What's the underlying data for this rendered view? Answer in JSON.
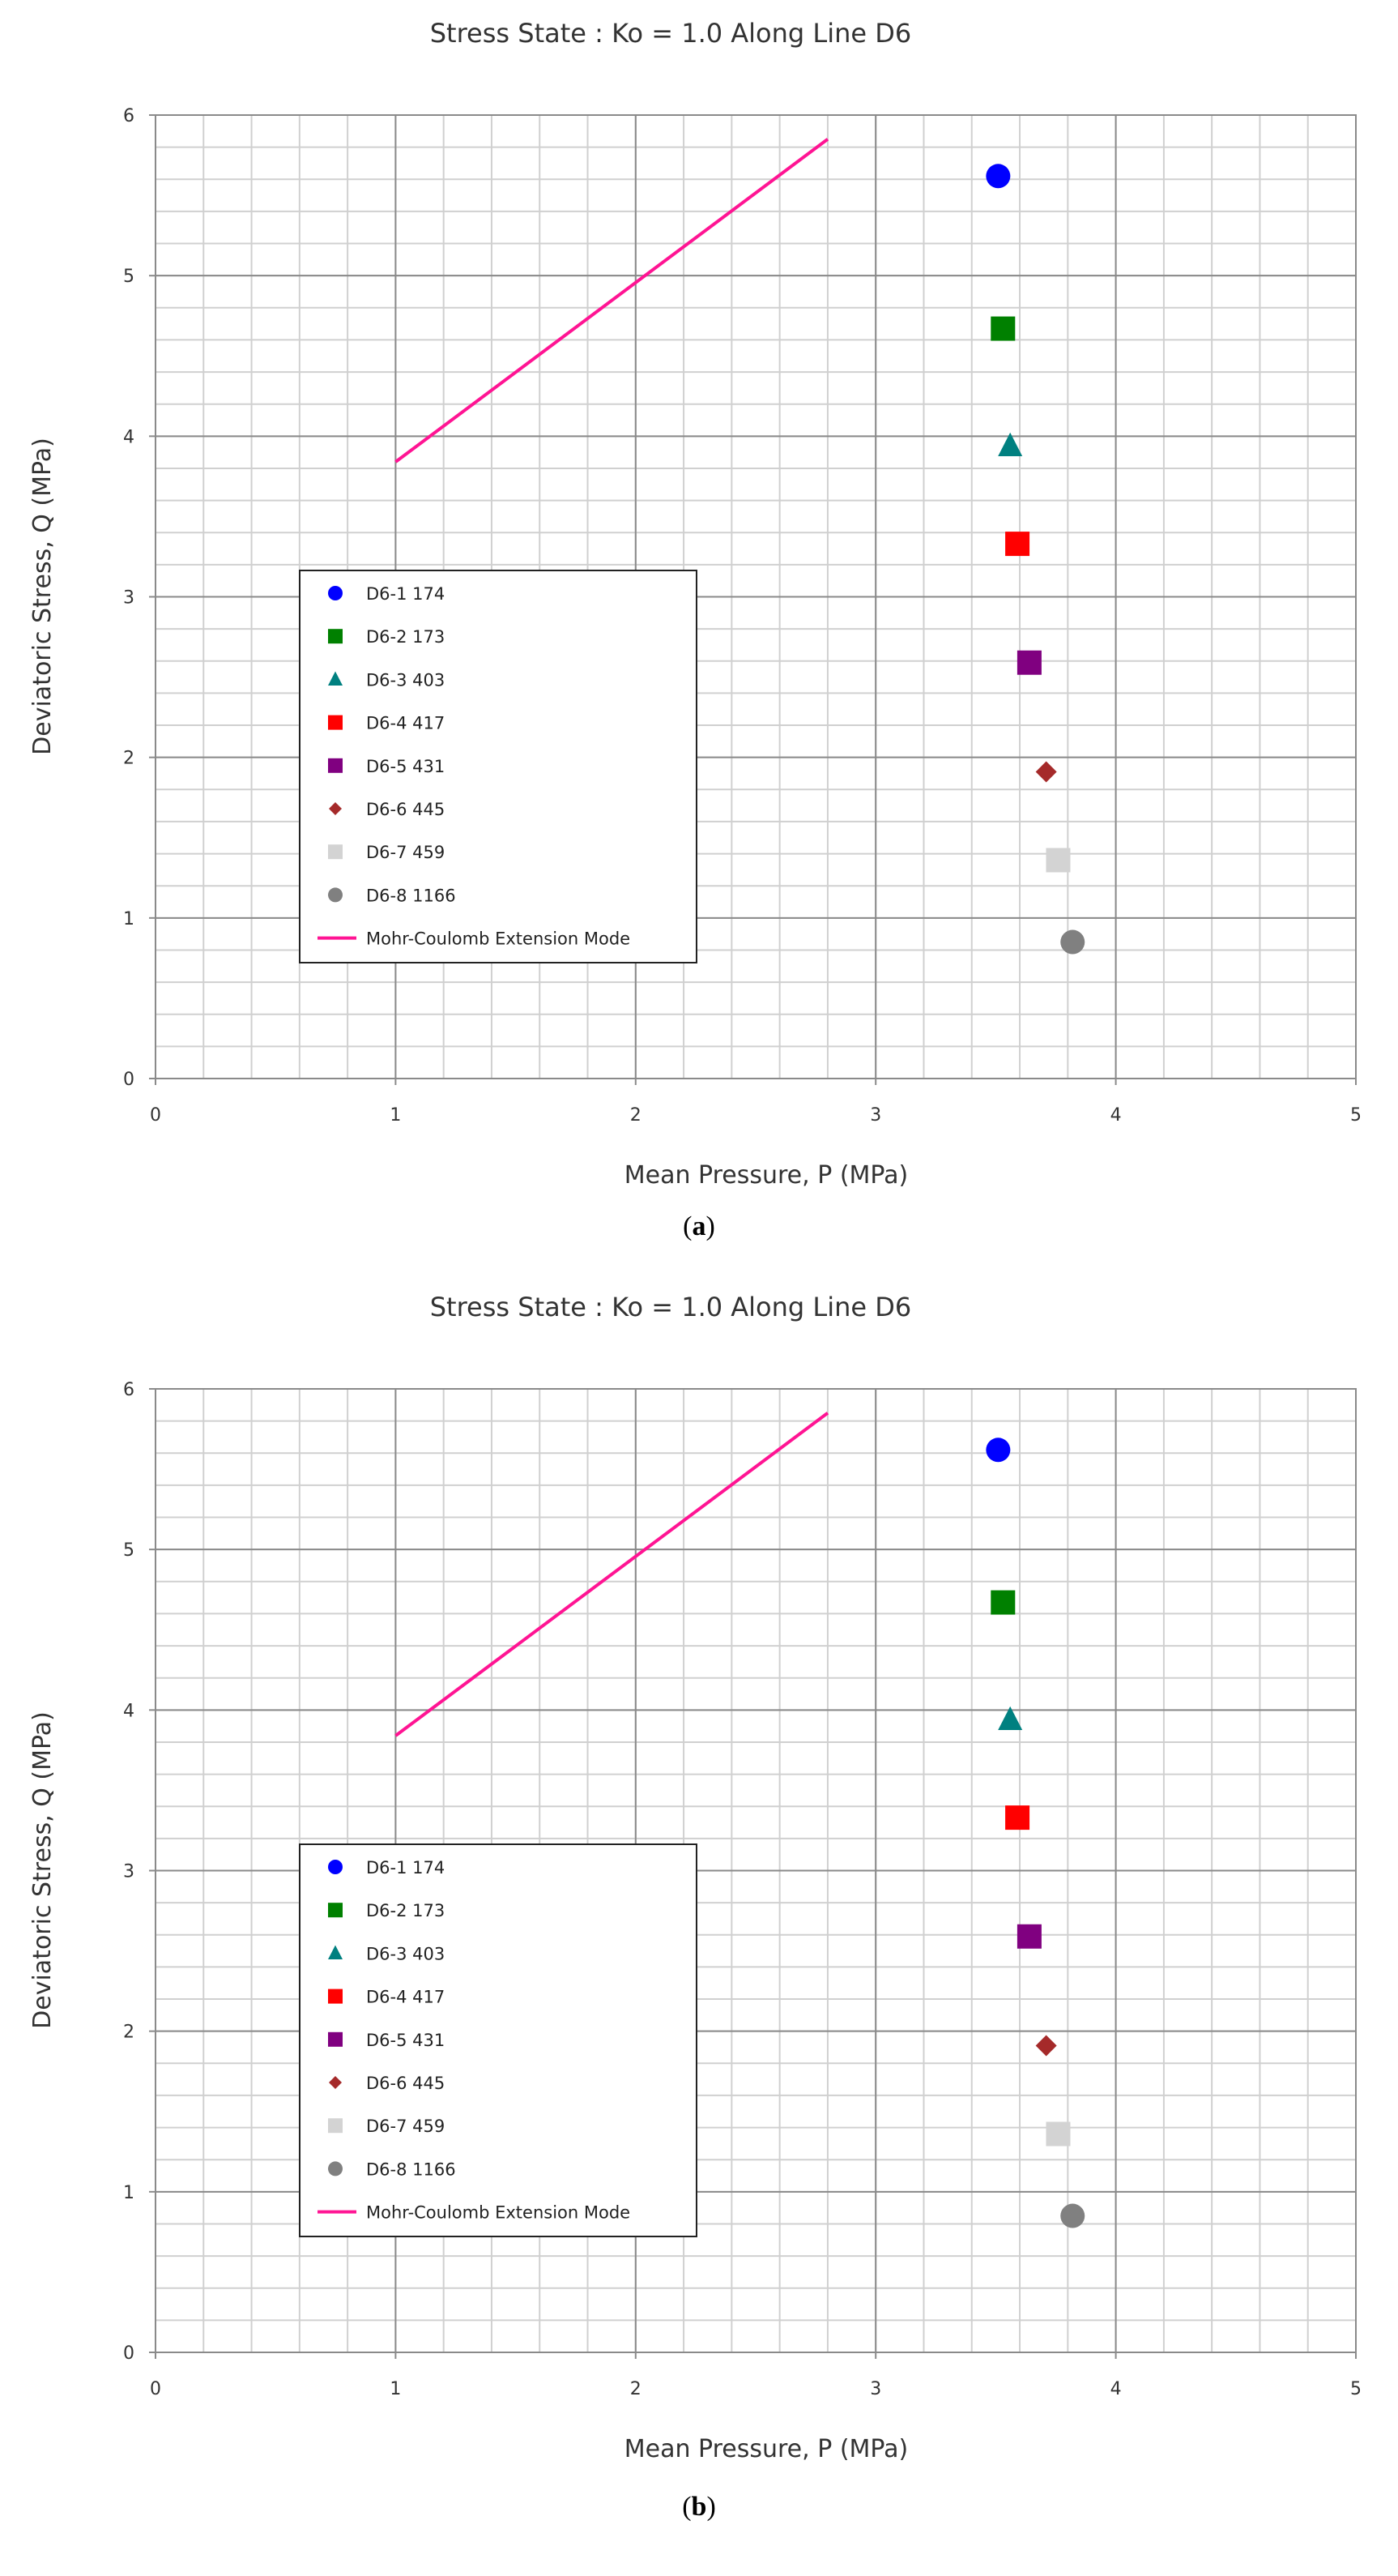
{
  "chart_data": [
    {
      "type": "scatter",
      "panel_label": "a",
      "title": "Stress State : Ko = 1.0   Along Line D6",
      "xlabel": "Mean Pressure,   P (MPa)",
      "ylabel": "Deviatoric Stress,   Q (MPa)",
      "xlim": [
        0,
        5
      ],
      "ylim": [
        0,
        6
      ],
      "x_ticks": [
        "0",
        "1",
        "2",
        "3",
        "4",
        "5"
      ],
      "y_ticks": [
        "0",
        "1",
        "2",
        "3",
        "4",
        "5",
        "6"
      ],
      "grid": true,
      "legend_position": "left-center",
      "series": [
        {
          "name": "D6-1 174",
          "marker": "circle",
          "color": "#0000ff",
          "x": [
            3.51
          ],
          "y": [
            5.62
          ]
        },
        {
          "name": "D6-2 173",
          "marker": "square",
          "color": "#008000",
          "x": [
            3.53
          ],
          "y": [
            4.67
          ]
        },
        {
          "name": "D6-3 403",
          "marker": "triangle",
          "color": "#008080",
          "x": [
            3.56
          ],
          "y": [
            3.94
          ]
        },
        {
          "name": "D6-4 417",
          "marker": "square",
          "color": "#ff0000",
          "x": [
            3.59
          ],
          "y": [
            3.33
          ]
        },
        {
          "name": "D6-5 431",
          "marker": "square",
          "color": "#800080",
          "x": [
            3.64
          ],
          "y": [
            2.59
          ]
        },
        {
          "name": "D6-6 445",
          "marker": "diamond",
          "color": "#a52a2a",
          "x": [
            3.71
          ],
          "y": [
            1.91
          ]
        },
        {
          "name": "D6-7 459",
          "marker": "square",
          "color": "#d3d3d3",
          "x": [
            3.76
          ],
          "y": [
            1.36
          ]
        },
        {
          "name": "D6-8 1166",
          "marker": "circle",
          "color": "#808080",
          "x": [
            3.82
          ],
          "y": [
            0.85
          ]
        },
        {
          "name": "Mohr-Coulomb  Extension Mode",
          "marker": "line",
          "color": "#ff1493",
          "x": [
            1.0,
            2.8
          ],
          "y": [
            3.84,
            5.85
          ]
        }
      ]
    },
    {
      "type": "scatter",
      "panel_label": "b",
      "title": "Stress State : Ko = 1.0   Along Line D6",
      "xlabel": "Mean Pressure,   P (MPa)",
      "ylabel": "Deviatoric Stress,   Q (MPa)",
      "xlim": [
        0,
        5
      ],
      "ylim": [
        0,
        6
      ],
      "x_ticks": [
        "0",
        "1",
        "2",
        "3",
        "4",
        "5"
      ],
      "y_ticks": [
        "0",
        "1",
        "2",
        "3",
        "4",
        "5",
        "6"
      ],
      "grid": true,
      "legend_position": "left-center",
      "series": [
        {
          "name": "D6-1 174",
          "marker": "circle",
          "color": "#0000ff",
          "x": [
            3.51
          ],
          "y": [
            5.62
          ]
        },
        {
          "name": "D6-2 173",
          "marker": "square",
          "color": "#008000",
          "x": [
            3.53
          ],
          "y": [
            4.67
          ]
        },
        {
          "name": "D6-3 403",
          "marker": "triangle",
          "color": "#008080",
          "x": [
            3.56
          ],
          "y": [
            3.94
          ]
        },
        {
          "name": "D6-4 417",
          "marker": "square",
          "color": "#ff0000",
          "x": [
            3.59
          ],
          "y": [
            3.33
          ]
        },
        {
          "name": "D6-5 431",
          "marker": "square",
          "color": "#800080",
          "x": [
            3.64
          ],
          "y": [
            2.59
          ]
        },
        {
          "name": "D6-6 445",
          "marker": "diamond",
          "color": "#a52a2a",
          "x": [
            3.71
          ],
          "y": [
            1.91
          ]
        },
        {
          "name": "D6-7 459",
          "marker": "square",
          "color": "#d3d3d3",
          "x": [
            3.76
          ],
          "y": [
            1.36
          ]
        },
        {
          "name": "D6-8 1166",
          "marker": "circle",
          "color": "#808080",
          "x": [
            3.82
          ],
          "y": [
            0.85
          ]
        },
        {
          "name": "Mohr-Coulomb  Extension Mode",
          "marker": "line",
          "color": "#ff1493",
          "x": [
            1.0,
            2.8
          ],
          "y": [
            3.84,
            5.85
          ]
        }
      ]
    }
  ],
  "captions": {
    "a": "a",
    "b": "b"
  }
}
